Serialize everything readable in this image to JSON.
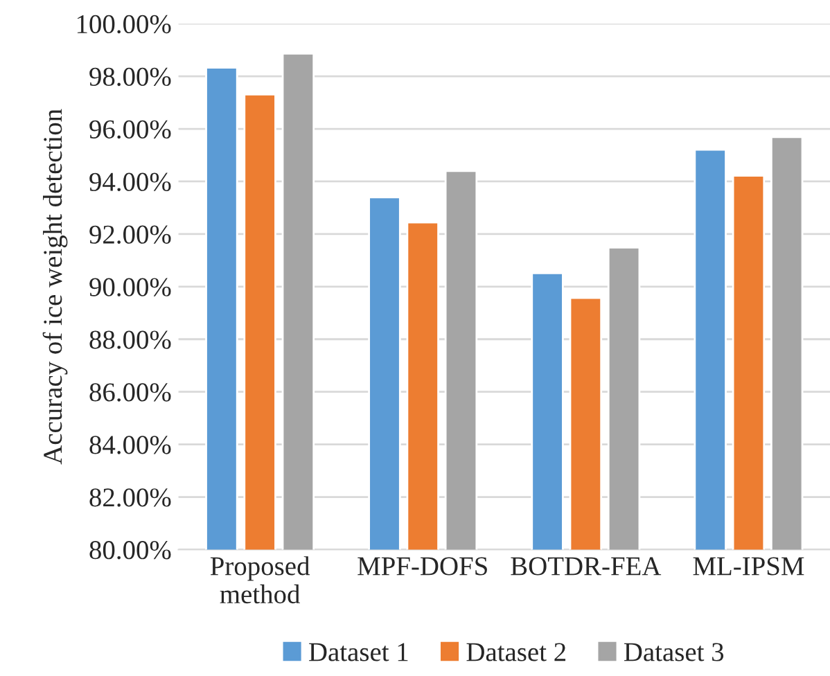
{
  "chart_data": {
    "type": "bar",
    "ylabel": "Accuracy of ice weight detection",
    "categories": [
      "Proposed\nmethod",
      "MPF-DOFS",
      "BOTDR-FEA",
      "ML-IPSM"
    ],
    "series": [
      {
        "name": "Dataset 1",
        "color": "#5b9bd5",
        "values": [
          98.33,
          93.4,
          90.51,
          95.21
        ]
      },
      {
        "name": "Dataset 2",
        "color": "#ed7d31",
        "values": [
          97.31,
          92.44,
          89.57,
          94.22
        ]
      },
      {
        "name": "Dataset 3",
        "color": "#a5a5a5",
        "values": [
          98.86,
          94.4,
          91.49,
          95.69
        ]
      }
    ],
    "ylim": [
      80,
      100
    ],
    "yticks": [
      {
        "value": 80,
        "label": "80.00%"
      },
      {
        "value": 82,
        "label": "82.00%"
      },
      {
        "value": 84,
        "label": "84.00%"
      },
      {
        "value": 86,
        "label": "86.00%"
      },
      {
        "value": 88,
        "label": "88.00%"
      },
      {
        "value": 90,
        "label": "90.00%"
      },
      {
        "value": 92,
        "label": "92.00%"
      },
      {
        "value": 94,
        "label": "94.00%"
      },
      {
        "value": 96,
        "label": "96.00%"
      },
      {
        "value": 98,
        "label": "98.00%"
      },
      {
        "value": 100,
        "label": "100.00%"
      }
    ],
    "grid": "y",
    "legend": "bottom"
  }
}
